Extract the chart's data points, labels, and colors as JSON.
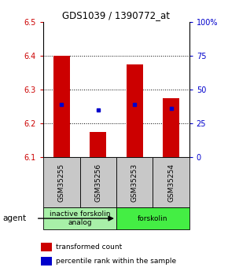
{
  "title": "GDS1039 / 1390772_at",
  "samples": [
    "GSM35255",
    "GSM35256",
    "GSM35253",
    "GSM35254"
  ],
  "bar_bottoms": [
    6.1,
    6.1,
    6.1,
    6.1
  ],
  "bar_tops": [
    6.4,
    6.175,
    6.375,
    6.275
  ],
  "percentile_values": [
    6.255,
    6.24,
    6.255,
    6.245
  ],
  "ylim": [
    6.1,
    6.5
  ],
  "yticks_left": [
    6.1,
    6.2,
    6.3,
    6.4,
    6.5
  ],
  "yticks_right": [
    0,
    25,
    50,
    75,
    100
  ],
  "groups": [
    {
      "label": "inactive forskolin\nanalog",
      "color": "#a8f0a8",
      "start": 0,
      "end": 2
    },
    {
      "label": "forskolin",
      "color": "#44ee44",
      "start": 2,
      "end": 4
    }
  ],
  "bar_color": "#cc0000",
  "percentile_color": "#0000cc",
  "bar_width": 0.45,
  "agent_label": "agent",
  "legend_bar_label": "transformed count",
  "legend_pct_label": "percentile rank within the sample",
  "background_color": "#ffffff",
  "plot_bg": "#ffffff",
  "xlabel_area_color": "#c8c8c8",
  "left_label_color": "#cc0000",
  "right_label_color": "#0000cc",
  "grid_yticks": [
    6.2,
    6.3,
    6.4
  ]
}
